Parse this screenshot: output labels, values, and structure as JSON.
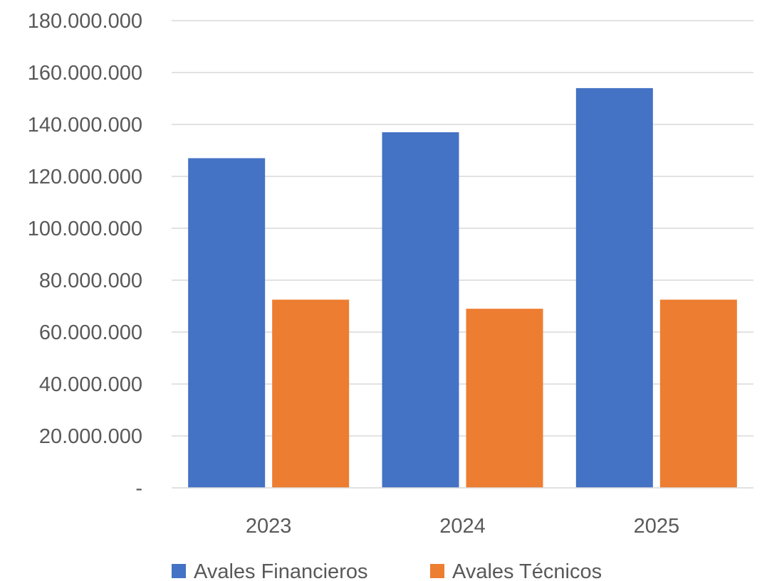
{
  "chart_data": {
    "type": "bar",
    "categories": [
      "2023",
      "2024",
      "2025"
    ],
    "series": [
      {
        "name": "Avales Financieros",
        "color": "#4472c4",
        "values": [
          127000000,
          137000000,
          154000000
        ]
      },
      {
        "name": "Avales Técnicos",
        "color": "#ed7d31",
        "values": [
          72500000,
          69000000,
          72500000
        ]
      }
    ],
    "yticks": [
      {
        "value": 0,
        "label": "-"
      },
      {
        "value": 20000000,
        "label": "20.000.000"
      },
      {
        "value": 40000000,
        "label": "40.000.000"
      },
      {
        "value": 60000000,
        "label": "60.000.000"
      },
      {
        "value": 80000000,
        "label": "80.000.000"
      },
      {
        "value": 100000000,
        "label": "100.000.000"
      },
      {
        "value": 120000000,
        "label": "120.000.000"
      },
      {
        "value": 140000000,
        "label": "140.000.000"
      },
      {
        "value": 160000000,
        "label": "160.000.000"
      },
      {
        "value": 180000000,
        "label": "180.000.000"
      }
    ],
    "ylim": [
      0,
      180000000
    ],
    "grid": true,
    "legend_position": "bottom",
    "title": "",
    "xlabel": "",
    "ylabel": ""
  }
}
